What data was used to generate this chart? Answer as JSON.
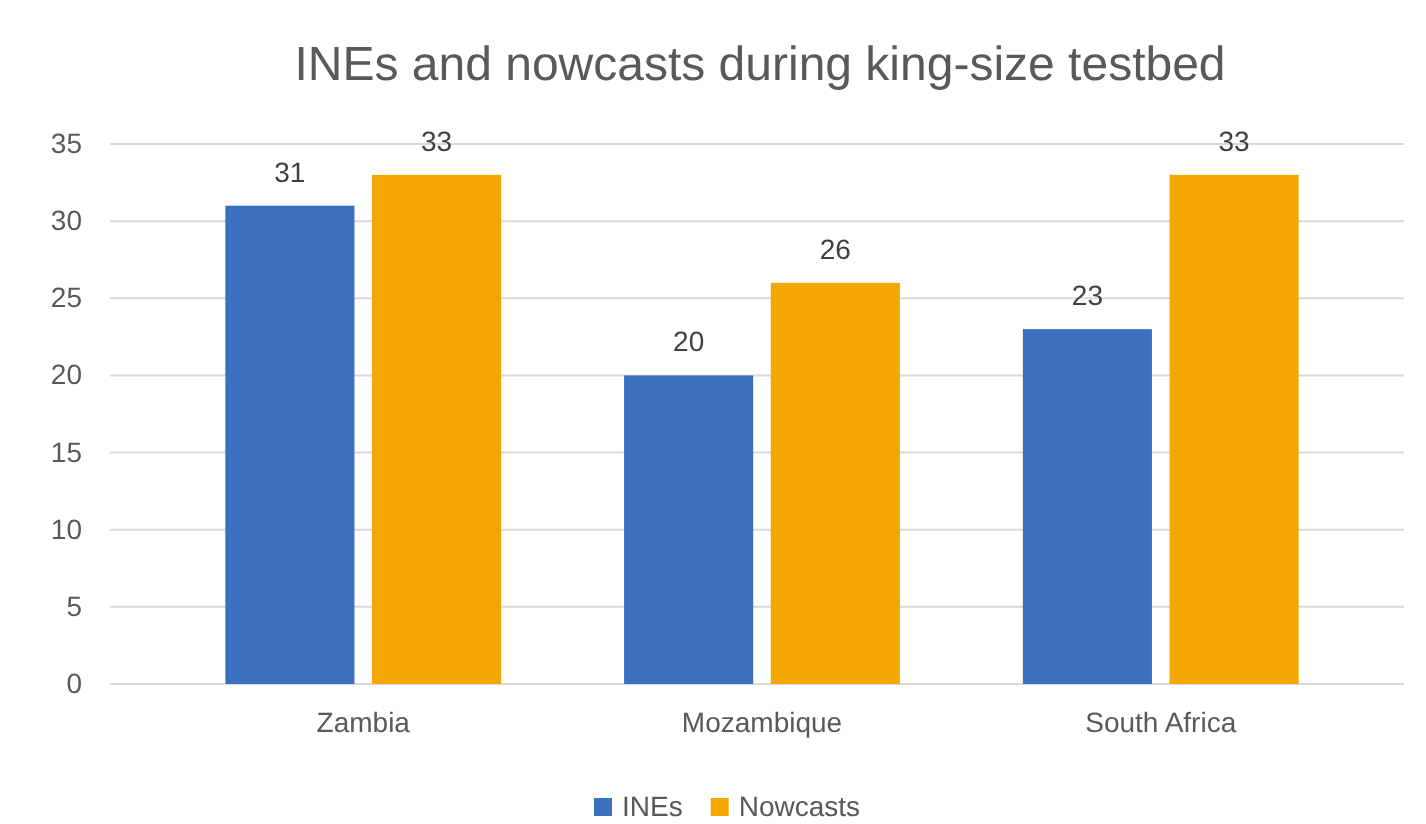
{
  "chart_data": {
    "type": "bar",
    "title": "INEs and nowcasts during king-size testbed",
    "categories": [
      "Zambia",
      "Mozambique",
      "South Africa"
    ],
    "series": [
      {
        "name": "INEs",
        "color": "#3b70bf",
        "values": [
          31,
          20,
          23
        ]
      },
      {
        "name": "Nowcasts",
        "color": "#f4a700",
        "values": [
          33,
          26,
          33
        ]
      }
    ],
    "ylim": [
      0,
      35
    ],
    "yticks": [
      0,
      5,
      10,
      15,
      20,
      25,
      30,
      35
    ],
    "grid": "y",
    "legend": "bottom",
    "data_labels": true
  }
}
